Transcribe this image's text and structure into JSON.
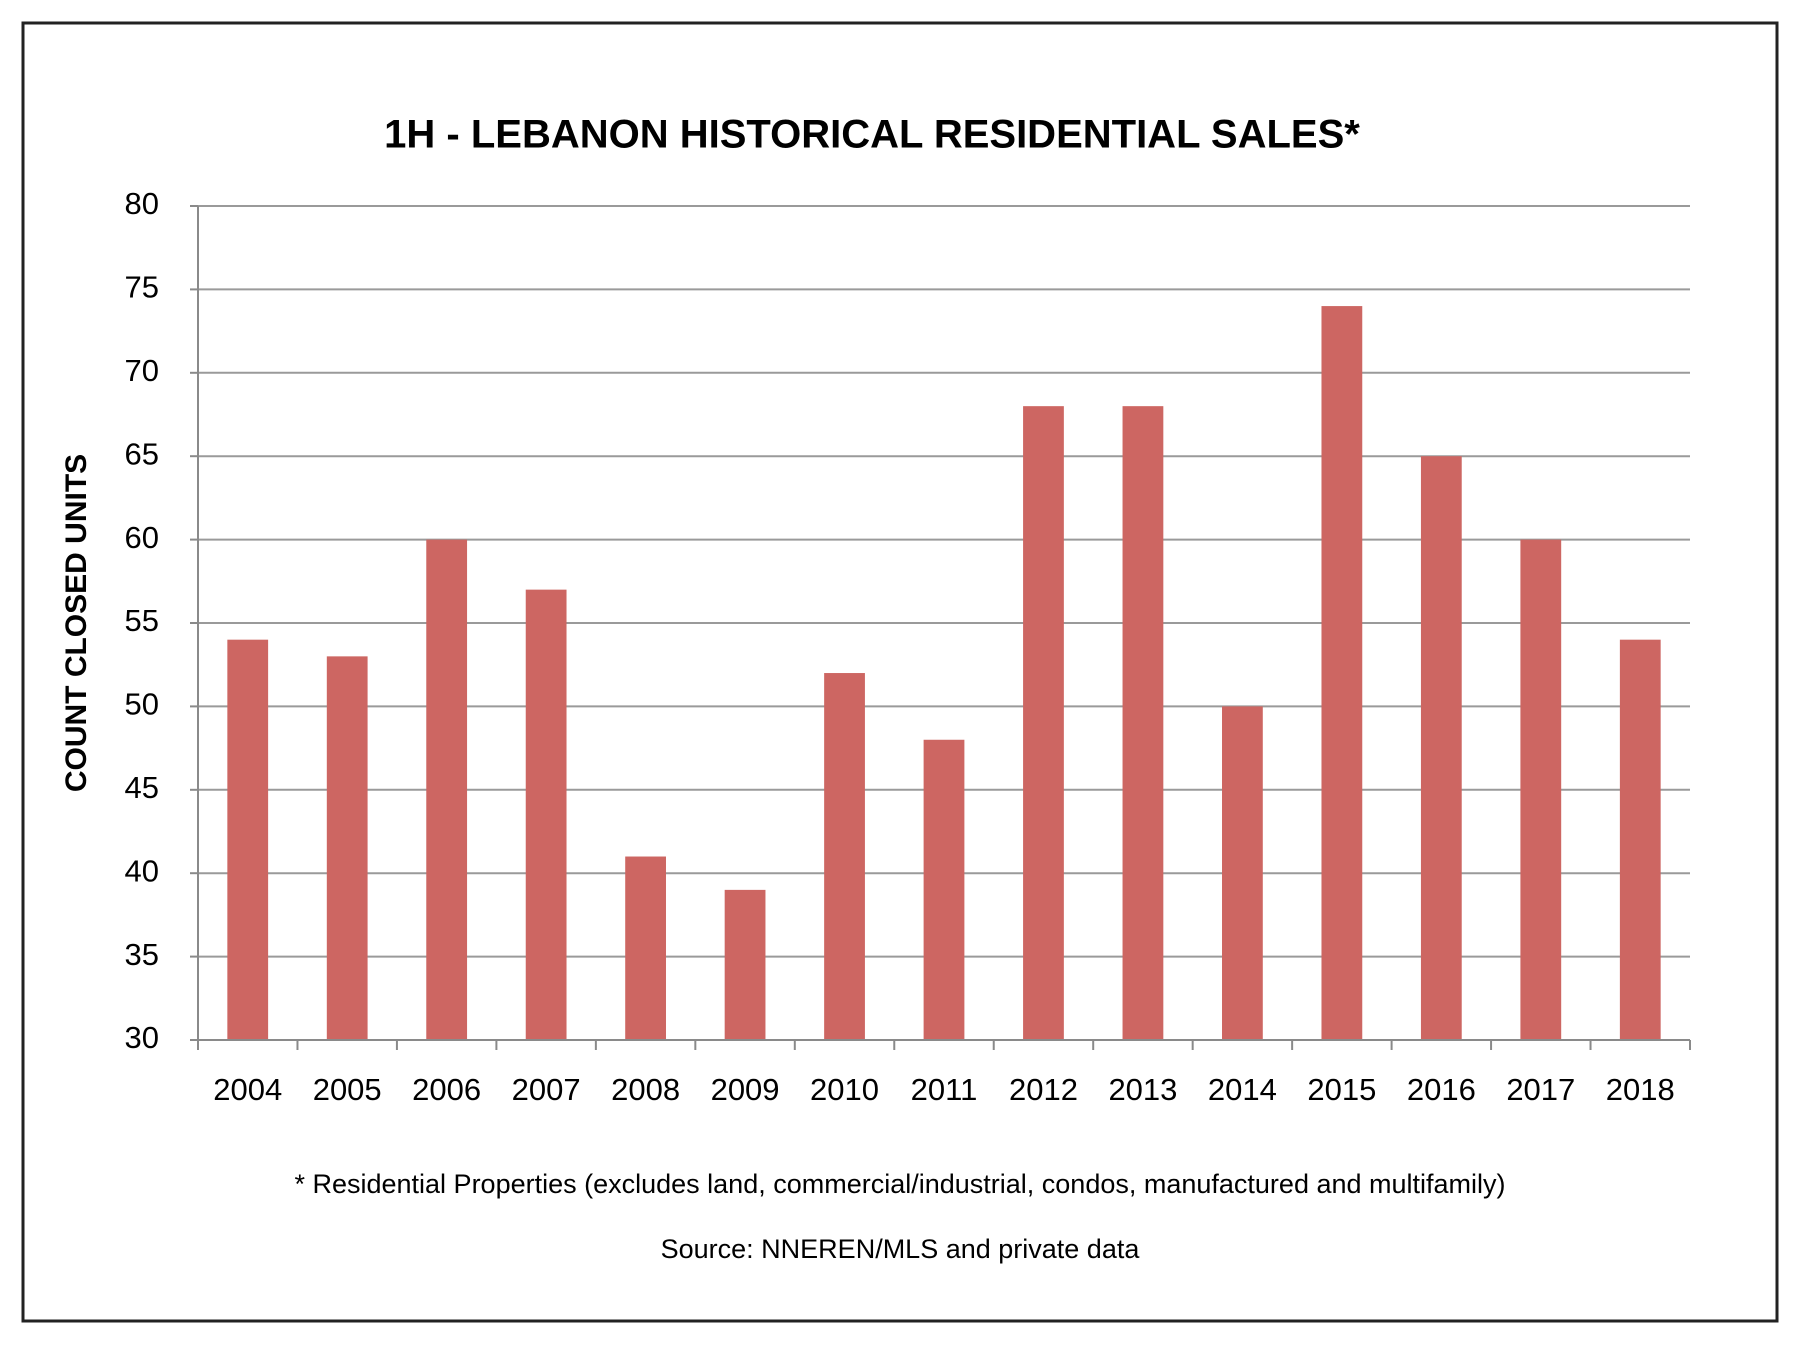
{
  "chart_data": {
    "type": "bar",
    "title": "1H - LEBANON HISTORICAL RESIDENTIAL SALES*",
    "y_label": "COUNT CLOSED UNITS",
    "footnote": "* Residential Properties (excludes land, commercial/industrial, condos, manufactured and multifamily)",
    "source": "Source: NNEREN/MLS and private data",
    "categories": [
      "2004",
      "2005",
      "2006",
      "2007",
      "2008",
      "2009",
      "2010",
      "2011",
      "2012",
      "2013",
      "2014",
      "2015",
      "2016",
      "2017",
      "2018"
    ],
    "values": [
      54,
      53,
      60,
      57,
      41,
      39,
      52,
      48,
      68,
      68,
      50,
      74,
      65,
      60,
      54
    ],
    "color": "#cd6662",
    "ylim": [
      30,
      80
    ],
    "yticks": [
      30,
      35,
      40,
      45,
      50,
      55,
      60,
      65,
      70,
      75,
      80
    ],
    "grid": true
  }
}
